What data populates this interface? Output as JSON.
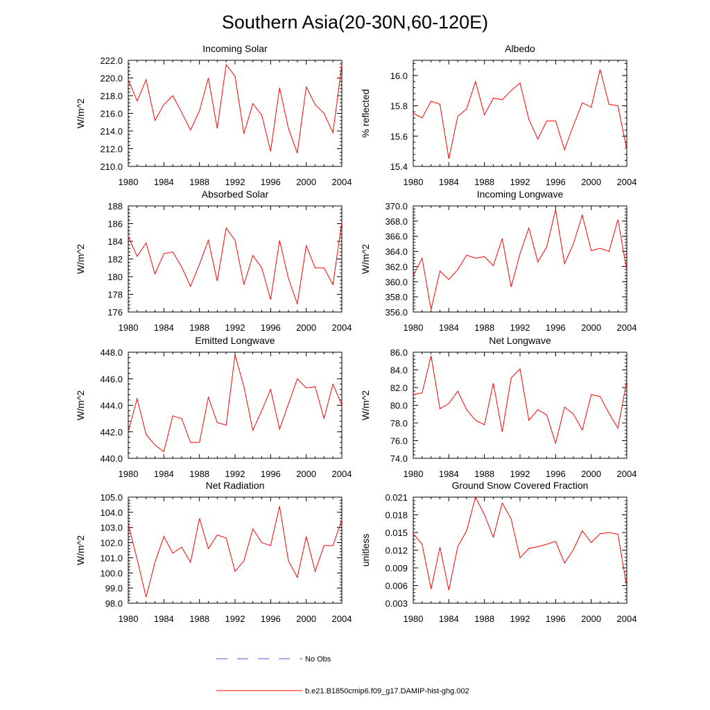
{
  "figure": {
    "title": "Southern Asia(20-30N,60-120E)",
    "legend": [
      {
        "label": "No Obs",
        "color": "#4a5dc8",
        "style": "dashed"
      },
      {
        "label": "b.e21.B1850cmip6.f09_g17.DAMIP-hist-ghg.002",
        "color": "#ff0000",
        "style": "solid"
      }
    ]
  },
  "chart_data": [
    {
      "type": "line",
      "title": "Incoming Solar",
      "ylabel": "W/m^2",
      "xlim": [
        1980,
        2004
      ],
      "ylim": [
        210.0,
        222.0
      ],
      "xticks": [
        1980,
        1984,
        1988,
        1992,
        1996,
        2000,
        2004
      ],
      "yticks": [
        "210.0",
        "212.0",
        "214.0",
        "216.0",
        "218.0",
        "220.0",
        "222.0"
      ],
      "series": [
        {
          "color": "#ff0000",
          "x": [
            1980,
            1981,
            1982,
            1983,
            1984,
            1985,
            1986,
            1987,
            1988,
            1989,
            1990,
            1991,
            1992,
            1993,
            1994,
            1995,
            1996,
            1997,
            1998,
            1999,
            2000,
            2001,
            2002,
            2003,
            2004
          ],
          "y": [
            219.8,
            217.4,
            219.8,
            215.2,
            217.0,
            218.0,
            216.1,
            214.1,
            216.3,
            220.0,
            214.3,
            221.5,
            220.2,
            213.7,
            217.1,
            215.8,
            211.7,
            218.9,
            214.3,
            211.5,
            219.0,
            217.0,
            216.0,
            213.8,
            221.5
          ]
        }
      ]
    },
    {
      "type": "line",
      "title": "Albedo",
      "ylabel": "% reflected",
      "xlim": [
        1980,
        2004
      ],
      "ylim": [
        15.4,
        16.1
      ],
      "xticks": [
        1980,
        1984,
        1988,
        1992,
        1996,
        2000,
        2004
      ],
      "yticks": [
        "15.4",
        "15.6",
        "15.8",
        "16.0"
      ],
      "series": [
        {
          "color": "#ff0000",
          "x": [
            1980,
            1981,
            1982,
            1983,
            1984,
            1985,
            1986,
            1987,
            1988,
            1989,
            1990,
            1991,
            1992,
            1993,
            1994,
            1995,
            1996,
            1997,
            1998,
            1999,
            2000,
            2001,
            2002,
            2003,
            2004
          ],
          "y": [
            15.75,
            15.72,
            15.83,
            15.81,
            15.45,
            15.73,
            15.78,
            15.96,
            15.74,
            15.85,
            15.84,
            15.9,
            15.95,
            15.71,
            15.58,
            15.7,
            15.7,
            15.51,
            15.67,
            15.82,
            15.79,
            16.04,
            15.81,
            15.8,
            15.51
          ]
        }
      ]
    },
    {
      "type": "line",
      "title": "Absorbed Solar",
      "ylabel": "W/m^2",
      "xlim": [
        1980,
        2004
      ],
      "ylim": [
        176,
        188
      ],
      "xticks": [
        1980,
        1984,
        1988,
        1992,
        1996,
        2000,
        2004
      ],
      "yticks": [
        "176",
        "178",
        "180",
        "182",
        "184",
        "186",
        "188"
      ],
      "series": [
        {
          "color": "#ff0000",
          "x": [
            1980,
            1981,
            1982,
            1983,
            1984,
            1985,
            1986,
            1987,
            1988,
            1989,
            1990,
            1991,
            1992,
            1993,
            1994,
            1995,
            1996,
            1997,
            1998,
            1999,
            2000,
            2001,
            2002,
            2003,
            2004
          ],
          "y": [
            184.5,
            182.3,
            183.8,
            180.3,
            182.6,
            182.8,
            181.1,
            178.9,
            181.4,
            184.1,
            179.5,
            185.5,
            184.1,
            179.1,
            182.4,
            181.0,
            177.4,
            184.1,
            179.8,
            176.9,
            183.5,
            181.0,
            181.0,
            179.1,
            186.2
          ]
        }
      ]
    },
    {
      "type": "line",
      "title": "Incoming Longwave",
      "ylabel": "W/m^2",
      "xlim": [
        1980,
        2004
      ],
      "ylim": [
        356.0,
        370.0
      ],
      "xticks": [
        1980,
        1984,
        1988,
        1992,
        1996,
        2000,
        2004
      ],
      "yticks": [
        "356.0",
        "358.0",
        "360.0",
        "362.0",
        "364.0",
        "366.0",
        "368.0",
        "370.0"
      ],
      "series": [
        {
          "color": "#ff0000",
          "x": [
            1980,
            1981,
            1982,
            1983,
            1984,
            1985,
            1986,
            1987,
            1988,
            1989,
            1990,
            1991,
            1992,
            1993,
            1994,
            1995,
            1996,
            1997,
            1998,
            1999,
            2000,
            2001,
            2002,
            2003,
            2004
          ],
          "y": [
            360.8,
            363.1,
            356.3,
            361.4,
            360.3,
            361.6,
            363.5,
            363.1,
            363.3,
            362.1,
            365.7,
            359.3,
            363.7,
            367.1,
            362.6,
            364.6,
            369.5,
            362.4,
            365.0,
            368.8,
            364.1,
            364.4,
            364.0,
            368.2,
            361.5
          ]
        }
      ]
    },
    {
      "type": "line",
      "title": "Emitted Longwave",
      "ylabel": "W/m^2",
      "xlim": [
        1980,
        2004
      ],
      "ylim": [
        440.0,
        448.0
      ],
      "xticks": [
        1980,
        1984,
        1988,
        1992,
        1996,
        2000,
        2004
      ],
      "yticks": [
        "440.0",
        "442.0",
        "444.0",
        "446.0",
        "448.0"
      ],
      "series": [
        {
          "color": "#ff0000",
          "x": [
            1980,
            1981,
            1982,
            1983,
            1984,
            1985,
            1986,
            1987,
            1988,
            1989,
            1990,
            1991,
            1992,
            1993,
            1994,
            1995,
            1996,
            1997,
            1998,
            1999,
            2000,
            2001,
            2002,
            2003,
            2004
          ],
          "y": [
            442.0,
            444.5,
            441.8,
            441.0,
            440.5,
            443.2,
            443.0,
            441.2,
            441.2,
            444.6,
            442.7,
            442.5,
            447.8,
            445.4,
            442.1,
            443.6,
            445.2,
            442.2,
            444.1,
            446.0,
            445.3,
            445.4,
            443.0,
            445.6,
            444.0
          ]
        }
      ]
    },
    {
      "type": "line",
      "title": "Net Longwave",
      "ylabel": "W/m^2",
      "xlim": [
        1980,
        2004
      ],
      "ylim": [
        74.0,
        86.0
      ],
      "xticks": [
        1980,
        1984,
        1988,
        1992,
        1996,
        2000,
        2004
      ],
      "yticks": [
        "74.0",
        "76.0",
        "78.0",
        "80.0",
        "82.0",
        "84.0",
        "86.0"
      ],
      "series": [
        {
          "color": "#ff0000",
          "x": [
            1980,
            1981,
            1982,
            1983,
            1984,
            1985,
            1986,
            1987,
            1988,
            1989,
            1990,
            1991,
            1992,
            1993,
            1994,
            1995,
            1996,
            1997,
            1998,
            1999,
            2000,
            2001,
            2002,
            2003,
            2004
          ],
          "y": [
            81.2,
            81.4,
            85.6,
            79.6,
            80.2,
            81.6,
            79.5,
            78.3,
            77.8,
            82.5,
            77.0,
            83.1,
            84.1,
            78.3,
            79.5,
            78.9,
            75.7,
            79.8,
            79.0,
            77.2,
            81.2,
            81.0,
            79.1,
            77.4,
            82.8
          ]
        }
      ]
    },
    {
      "type": "line",
      "title": "Net Radiation",
      "ylabel": "W/m^2",
      "xlim": [
        1980,
        2004
      ],
      "ylim": [
        98.0,
        105.0
      ],
      "xticks": [
        1980,
        1984,
        1988,
        1992,
        1996,
        2000,
        2004
      ],
      "yticks": [
        "98.0",
        "99.0",
        "100.0",
        "101.0",
        "102.0",
        "103.0",
        "104.0",
        "105.0"
      ],
      "series": [
        {
          "color": "#ff0000",
          "x": [
            1980,
            1981,
            1982,
            1983,
            1984,
            1985,
            1986,
            1987,
            1988,
            1989,
            1990,
            1991,
            1992,
            1993,
            1994,
            1995,
            1996,
            1997,
            1998,
            1999,
            2000,
            2001,
            2002,
            2003,
            2004
          ],
          "y": [
            103.2,
            100.9,
            98.4,
            100.7,
            102.4,
            101.3,
            101.7,
            100.7,
            103.6,
            101.6,
            102.5,
            102.3,
            100.1,
            100.8,
            102.9,
            102.0,
            101.8,
            104.4,
            100.8,
            99.7,
            102.4,
            100.1,
            101.8,
            101.8,
            103.5
          ]
        }
      ]
    },
    {
      "type": "line",
      "title": "Ground Snow Covered Fraction",
      "ylabel": "unitless",
      "xlim": [
        1980,
        2004
      ],
      "ylim": [
        0.003,
        0.021
      ],
      "xticks": [
        1980,
        1984,
        1988,
        1992,
        1996,
        2000,
        2004
      ],
      "yticks": [
        "0.003",
        "0.006",
        "0.009",
        "0.012",
        "0.015",
        "0.018",
        "0.021"
      ],
      "series": [
        {
          "color": "#ff0000",
          "x": [
            1980,
            1981,
            1982,
            1983,
            1984,
            1985,
            1986,
            1987,
            1988,
            1989,
            1990,
            1991,
            1992,
            1993,
            1994,
            1995,
            1996,
            1997,
            1998,
            1999,
            2000,
            2001,
            2002,
            2003,
            2004
          ],
          "y": [
            0.0148,
            0.013,
            0.0054,
            0.0125,
            0.0052,
            0.0126,
            0.0153,
            0.021,
            0.018,
            0.0142,
            0.02,
            0.0173,
            0.0107,
            0.0123,
            0.0126,
            0.013,
            0.0135,
            0.0098,
            0.0121,
            0.0153,
            0.0133,
            0.0148,
            0.015,
            0.0147,
            0.0058
          ]
        }
      ]
    }
  ]
}
